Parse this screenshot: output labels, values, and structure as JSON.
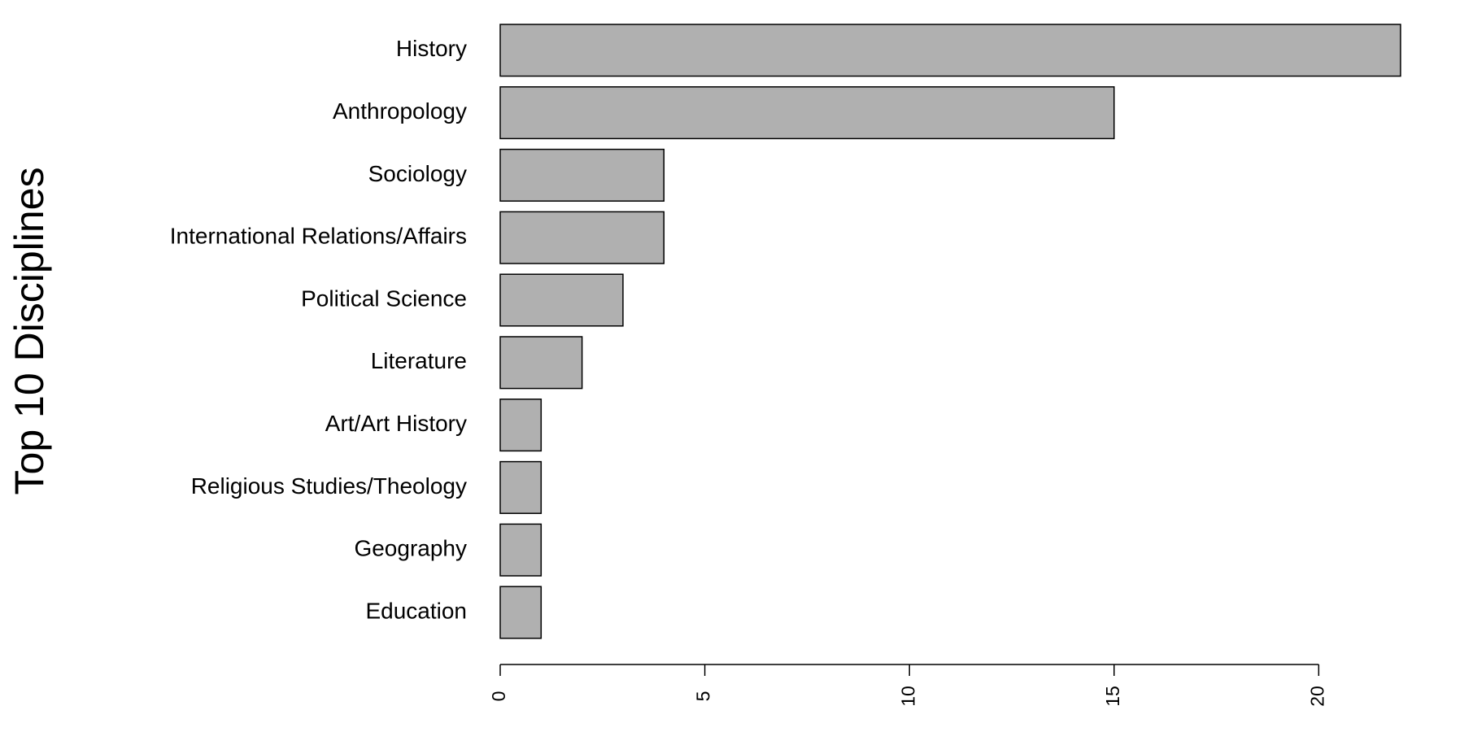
{
  "chart_data": {
    "type": "bar",
    "orientation": "horizontal",
    "y_label": "Top 10 Disciplines",
    "categories": [
      "History",
      "Anthropology",
      "Sociology",
      "International Relations/Affairs",
      "Political Science",
      "Literature",
      "Art/Art History",
      "Religious Studies/Theology",
      "Geography",
      "Education"
    ],
    "values": [
      22,
      15,
      4,
      4,
      3,
      2,
      1,
      1,
      1,
      1
    ],
    "color": "#b0b0b0",
    "xlim": [
      0,
      22
    ],
    "xticks": [
      0,
      5,
      10,
      15,
      20
    ],
    "grid": false
  }
}
